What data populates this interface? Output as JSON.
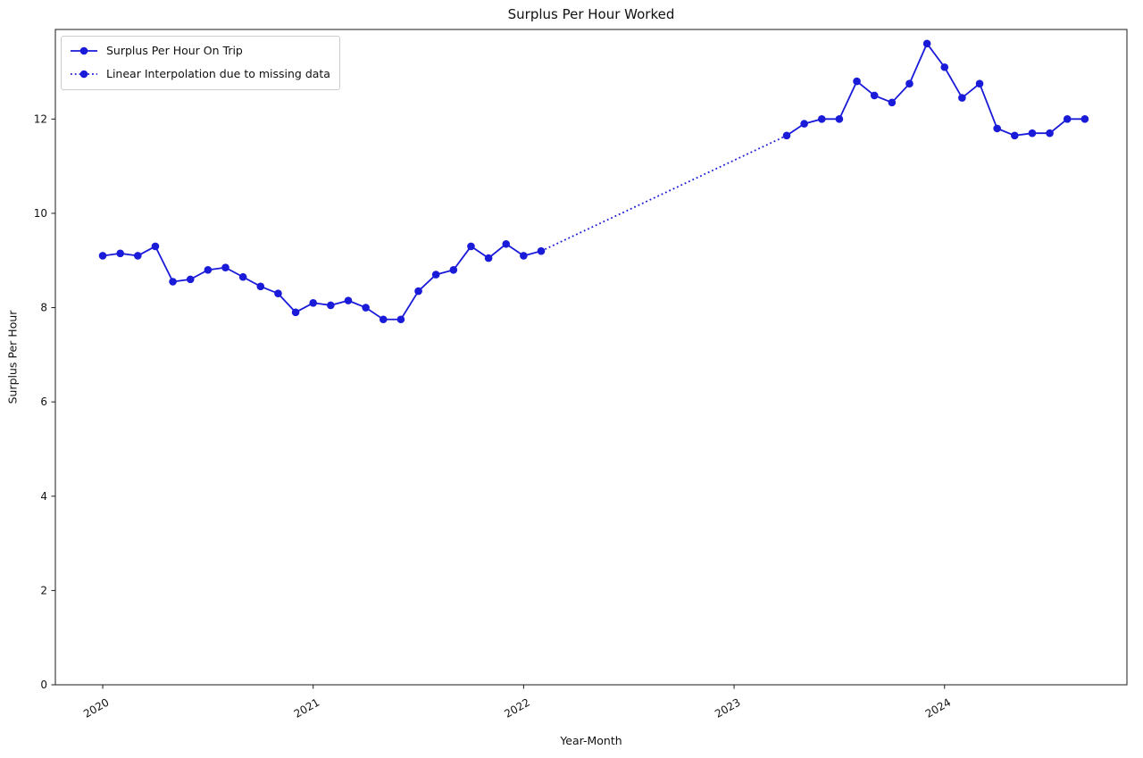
{
  "chart_data": {
    "type": "line",
    "title": "Surplus Per Hour Worked",
    "xlabel": "Year-Month",
    "ylabel": "Surplus Per Hour",
    "line_color": "#1a1ad9",
    "legend_position": "upper left",
    "grid": false,
    "axes": {
      "x_tick_labels": [
        "2020",
        "2021",
        "2022",
        "2023",
        "2024"
      ],
      "x_tick_months": [
        "2020-01",
        "2021-01",
        "2022-01",
        "2023-01",
        "2024-01"
      ],
      "x_tick_rotation_deg": 30,
      "y_ticks": [
        0,
        2,
        4,
        6,
        8,
        10,
        12
      ],
      "xlim_month_index": [
        -2.7,
        58.4
      ],
      "ylim": [
        0,
        13.9
      ]
    },
    "series": [
      {
        "name": "Surplus Per Hour On Trip",
        "line_style": "solid",
        "markers": true,
        "segments": [
          {
            "months": [
              "2020-01",
              "2020-02",
              "2020-03",
              "2020-04",
              "2020-05",
              "2020-06",
              "2020-07",
              "2020-08",
              "2020-09",
              "2020-10",
              "2020-11",
              "2020-12",
              "2021-01",
              "2021-02",
              "2021-03",
              "2021-04",
              "2021-05",
              "2021-06",
              "2021-07",
              "2021-08",
              "2021-09",
              "2021-10",
              "2021-11",
              "2021-12",
              "2022-01",
              "2022-02"
            ],
            "values": [
              9.1,
              9.15,
              9.1,
              9.3,
              8.55,
              8.6,
              8.8,
              8.85,
              8.65,
              8.45,
              8.3,
              7.9,
              8.1,
              8.05,
              8.15,
              8.0,
              7.75,
              7.75,
              8.35,
              8.7,
              8.8,
              9.3,
              9.05,
              9.35,
              9.1,
              9.2
            ]
          },
          {
            "months": [
              "2023-04",
              "2023-05",
              "2023-06",
              "2023-07",
              "2023-08",
              "2023-09",
              "2023-10",
              "2023-11",
              "2023-12",
              "2024-01",
              "2024-02",
              "2024-03",
              "2024-04",
              "2024-05",
              "2024-06",
              "2024-07",
              "2024-08",
              "2024-09"
            ],
            "values": [
              11.65,
              11.9,
              12.0,
              12.0,
              12.8,
              12.5,
              12.35,
              12.75,
              13.6,
              13.1,
              12.45,
              12.75,
              11.8,
              11.65,
              11.7,
              11.7,
              12.0,
              12.0
            ]
          }
        ]
      },
      {
        "name": "Linear Interpolation due to missing data",
        "line_style": "dotted",
        "markers": false,
        "segments": [
          {
            "months": [
              "2022-02",
              "2023-04"
            ],
            "values": [
              9.2,
              11.65
            ]
          }
        ]
      }
    ]
  }
}
